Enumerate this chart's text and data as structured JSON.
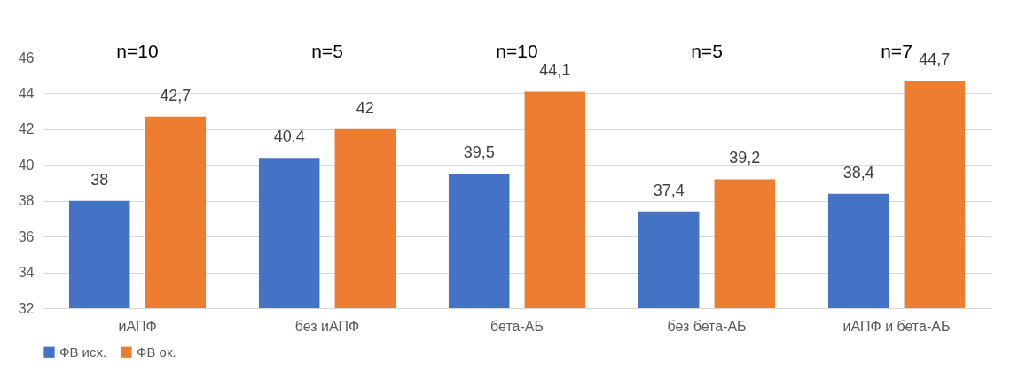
{
  "chart_data": {
    "type": "bar",
    "categories": [
      "иАПФ",
      "без иАПФ",
      "бета-АБ",
      "без бета-АБ",
      "иАПФ и бета-АБ"
    ],
    "series": [
      {
        "name": "ФВ исх.",
        "color": "#4472c4",
        "values": [
          38,
          40.4,
          39.5,
          37.4,
          38.4
        ],
        "value_labels": [
          "38",
          "40,4",
          "39,5",
          "37,4",
          "38,4"
        ]
      },
      {
        "name": "ФВ ок.",
        "color": "#ed7d31",
        "values": [
          42.7,
          42,
          44.1,
          39.2,
          44.7
        ],
        "value_labels": [
          "42,7",
          "42",
          "44,1",
          "39,2",
          "44,7"
        ]
      }
    ],
    "ylim": [
      32,
      46
    ],
    "yticks": [
      32,
      34,
      36,
      38,
      40,
      42,
      44,
      46
    ],
    "grid": "y",
    "legend": "bottom",
    "annotations": [
      "n=10",
      "n=5",
      "n=10",
      "n=5",
      "n=7"
    ]
  }
}
